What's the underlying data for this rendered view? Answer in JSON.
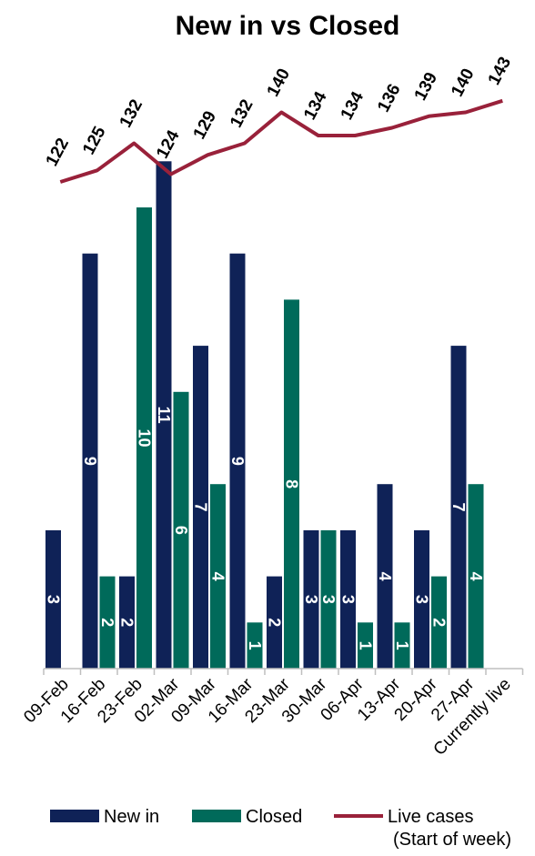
{
  "chart_data": {
    "type": "bar",
    "title": "New in vs Closed",
    "categories": [
      "09-Feb",
      "16-Feb",
      "23-Feb",
      "02-Mar",
      "09-Mar",
      "16-Mar",
      "23-Mar",
      "30-Mar",
      "06-Apr",
      "13-Apr",
      "20-Apr",
      "27-Apr",
      "Currently live"
    ],
    "series": [
      {
        "name": "New in",
        "type": "bar",
        "color": "#0f2257",
        "values": [
          3,
          9,
          2,
          11,
          7,
          9,
          2,
          3,
          3,
          4,
          3,
          7,
          null
        ]
      },
      {
        "name": "Closed",
        "type": "bar",
        "color": "#006a5a",
        "values": [
          null,
          2,
          10,
          6,
          4,
          1,
          8,
          3,
          1,
          1,
          2,
          4,
          null
        ]
      },
      {
        "name": "Live cases",
        "legend_sublabel": "(Start of week)",
        "type": "line",
        "color": "#99213a",
        "values": [
          122,
          125,
          132,
          124,
          129,
          132,
          140,
          134,
          134,
          136,
          139,
          140,
          143
        ]
      }
    ],
    "ylim": [
      0,
      11
    ],
    "grid": false,
    "legend": "bottom"
  }
}
